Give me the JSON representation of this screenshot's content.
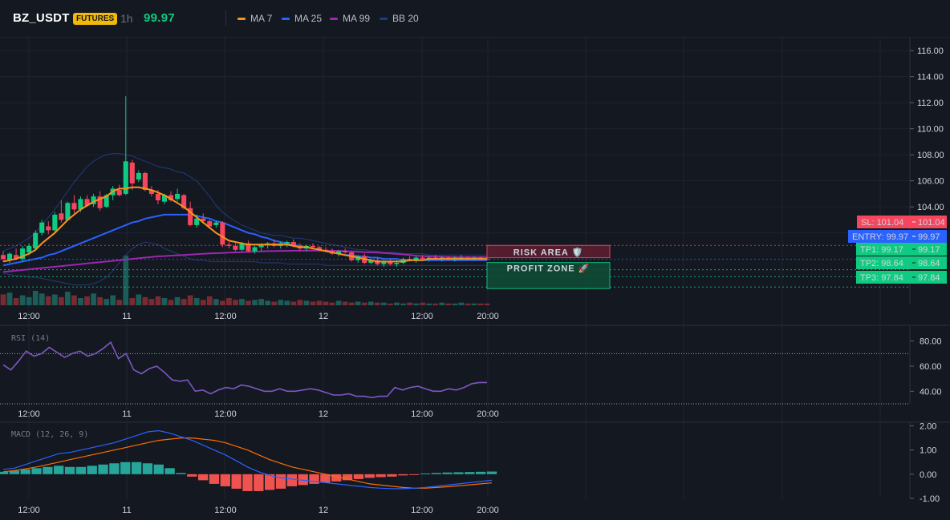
{
  "header": {
    "symbol": "BZ_USDT",
    "badge": "FUTURES",
    "timeframe": "1h",
    "price": "99.97",
    "legend": [
      {
        "label": "MA 7",
        "color": "#f7931a"
      },
      {
        "label": "MA 25",
        "color": "#2962ff"
      },
      {
        "label": "MA 99",
        "color": "#9c27b0"
      },
      {
        "label": "BB 20",
        "color": "#1e3a8a"
      }
    ]
  },
  "colors": {
    "up": "#26a69a",
    "down": "#ef5350",
    "candle_up": "#0ecb81",
    "candle_down": "#f6465d",
    "rsi": "#7e57c2",
    "macd": "#2962ff",
    "signal": "#ff6d00"
  },
  "x_ticks": [
    "12:00",
    "11",
    "12:00",
    "12",
    "12:00",
    "20:00"
  ],
  "chart_data": [
    {
      "type": "candlestick",
      "title": "",
      "ylim": [
        96.5,
        117
      ],
      "y_ticks": [
        "116.00",
        "114.00",
        "112.00",
        "110.00",
        "108.00",
        "106.00",
        "104.00",
        "102.00"
      ],
      "ohlc": [
        [
          100.3,
          100.6,
          99.8,
          100.0
        ],
        [
          99.9,
          100.5,
          99.7,
          100.4
        ],
        [
          100.3,
          100.8,
          99.9,
          100.0
        ],
        [
          100.0,
          101.0,
          99.8,
          100.8
        ],
        [
          100.5,
          101.2,
          100.3,
          101.0
        ],
        [
          100.8,
          102.2,
          100.6,
          102.0
        ],
        [
          102.0,
          103.0,
          101.8,
          102.8
        ],
        [
          102.5,
          102.9,
          101.9,
          102.2
        ],
        [
          102.2,
          103.6,
          102.0,
          103.4
        ],
        [
          103.5,
          104.5,
          102.8,
          103.0
        ],
        [
          103.0,
          104.4,
          102.9,
          104.3
        ],
        [
          104.3,
          104.9,
          103.5,
          103.8
        ],
        [
          103.8,
          104.8,
          103.6,
          104.6
        ],
        [
          104.6,
          104.9,
          104.0,
          104.1
        ],
        [
          104.2,
          105.0,
          104.0,
          104.8
        ],
        [
          104.8,
          105.2,
          103.7,
          103.9
        ],
        [
          104.0,
          105.0,
          103.9,
          104.9
        ],
        [
          104.9,
          105.6,
          104.5,
          105.4
        ],
        [
          105.3,
          105.7,
          104.8,
          104.9
        ],
        [
          105.0,
          112.5,
          104.9,
          107.5
        ],
        [
          107.4,
          107.6,
          105.3,
          105.8
        ],
        [
          106.1,
          106.8,
          105.9,
          106.6
        ],
        [
          106.6,
          106.7,
          105.2,
          105.3
        ],
        [
          105.3,
          105.6,
          104.8,
          105.0
        ],
        [
          105.0,
          105.3,
          104.2,
          104.5
        ],
        [
          104.4,
          105.0,
          104.2,
          104.9
        ],
        [
          104.9,
          105.2,
          104.4,
          104.5
        ],
        [
          104.6,
          105.4,
          104.4,
          105.0
        ],
        [
          104.9,
          105.0,
          103.8,
          103.9
        ],
        [
          103.9,
          104.4,
          102.5,
          102.6
        ],
        [
          102.6,
          103.4,
          102.4,
          103.1
        ],
        [
          103.1,
          103.5,
          102.7,
          102.9
        ],
        [
          102.9,
          103.0,
          102.3,
          102.5
        ],
        [
          102.6,
          102.9,
          102.4,
          102.8
        ],
        [
          102.8,
          102.9,
          100.9,
          101.1
        ],
        [
          101.1,
          101.3,
          100.8,
          101.0
        ],
        [
          101.0,
          101.2,
          100.6,
          100.7
        ],
        [
          100.7,
          101.3,
          100.6,
          101.2
        ],
        [
          101.2,
          101.4,
          100.5,
          100.6
        ],
        [
          100.6,
          101.0,
          100.4,
          100.9
        ],
        [
          100.9,
          101.2,
          100.6,
          101.1
        ],
        [
          101.1,
          101.3,
          100.8,
          101.2
        ],
        [
          101.2,
          101.5,
          100.9,
          101.0
        ],
        [
          101.0,
          101.3,
          100.8,
          101.2
        ],
        [
          101.2,
          101.4,
          100.9,
          101.3
        ],
        [
          101.3,
          101.5,
          100.9,
          101.0
        ],
        [
          101.0,
          101.2,
          100.6,
          100.8
        ],
        [
          100.8,
          101.1,
          100.6,
          101.0
        ],
        [
          101.0,
          101.2,
          100.8,
          100.9
        ],
        [
          100.9,
          101.0,
          100.6,
          100.7
        ],
        [
          100.7,
          100.9,
          100.5,
          100.6
        ],
        [
          100.6,
          100.8,
          100.3,
          100.4
        ],
        [
          100.4,
          100.7,
          100.2,
          100.6
        ],
        [
          100.6,
          100.8,
          100.4,
          100.5
        ],
        [
          100.5,
          100.6,
          99.8,
          99.9
        ],
        [
          99.9,
          100.3,
          99.7,
          100.2
        ],
        [
          100.2,
          100.4,
          99.6,
          99.7
        ],
        [
          99.7,
          100.0,
          99.6,
          99.9
        ],
        [
          99.9,
          100.1,
          99.5,
          99.6
        ],
        [
          99.6,
          99.9,
          99.4,
          99.8
        ],
        [
          99.8,
          100.0,
          99.5,
          99.6
        ],
        [
          99.6,
          99.9,
          99.4,
          99.7
        ],
        [
          99.7,
          100.1,
          99.6,
          100.0
        ],
        [
          100.0,
          100.2,
          99.8,
          99.9
        ],
        [
          99.9,
          100.2,
          99.7,
          100.1
        ],
        [
          100.1,
          100.3,
          99.9,
          100.0
        ],
        [
          100.0,
          100.2,
          99.8,
          100.1
        ],
        [
          100.1,
          100.3,
          99.9,
          100.0
        ],
        [
          100.0,
          100.2,
          99.8,
          100.1
        ],
        [
          100.1,
          100.2,
          99.9,
          100.0
        ],
        [
          100.0,
          100.2,
          99.8,
          100.1
        ],
        [
          100.1,
          100.3,
          99.9,
          100.1
        ],
        [
          100.1,
          100.2,
          99.9,
          100.0
        ],
        [
          100.0,
          100.2,
          99.9,
          100.1
        ],
        [
          100.1,
          100.2,
          99.9,
          100.0
        ],
        [
          100.0,
          100.2,
          99.9,
          99.97
        ]
      ],
      "ma7": [
        99.8,
        99.9,
        100.0,
        100.2,
        100.4,
        100.7,
        101.2,
        101.6,
        102.0,
        102.5,
        103.0,
        103.4,
        103.8,
        104.1,
        104.4,
        104.6,
        104.8,
        105.2,
        105.4,
        105.4,
        105.5,
        105.5,
        105.4,
        105.3,
        105.1,
        104.9,
        104.6,
        104.3,
        104.0,
        103.6,
        103.2,
        102.8,
        102.4,
        102.0,
        101.7,
        101.4,
        101.3,
        101.2,
        101.1,
        101.1,
        101.1,
        101.1,
        101.1,
        101.1,
        101.1,
        101.0,
        100.9,
        100.9,
        100.8,
        100.7,
        100.6,
        100.5,
        100.4,
        100.3,
        100.2,
        100.1,
        100.0,
        99.9,
        99.8,
        99.8,
        99.8,
        99.8,
        99.8,
        99.9,
        99.9,
        99.9,
        100.0,
        100.0,
        100.0,
        100.0,
        100.0,
        100.0,
        100.0,
        100.0,
        100.0,
        100.0
      ],
      "ma25": [
        99.5,
        99.6,
        99.7,
        99.8,
        99.9,
        100.0,
        100.1,
        100.3,
        100.4,
        100.6,
        100.8,
        101.0,
        101.2,
        101.4,
        101.6,
        101.8,
        102.0,
        102.2,
        102.4,
        102.6,
        102.8,
        102.9,
        103.1,
        103.2,
        103.3,
        103.4,
        103.4,
        103.4,
        103.4,
        103.4,
        103.3,
        103.2,
        103.1,
        102.9,
        102.8,
        102.6,
        102.4,
        102.2,
        102.0,
        101.9,
        101.7,
        101.6,
        101.4,
        101.3,
        101.2,
        101.1,
        101.0,
        100.9,
        100.8,
        100.7,
        100.6,
        100.5,
        100.4,
        100.3,
        100.3,
        100.2,
        100.2,
        100.1,
        100.1,
        100.0,
        100.0,
        100.0,
        99.9,
        99.9,
        99.9,
        99.9,
        99.9,
        99.9,
        99.9,
        99.9,
        99.9,
        99.9,
        99.9,
        99.9,
        99.9,
        99.9
      ],
      "ma99": [
        99.0,
        99.05,
        99.1,
        99.15,
        99.2,
        99.25,
        99.3,
        99.35,
        99.4,
        99.45,
        99.5,
        99.55,
        99.6,
        99.65,
        99.7,
        99.75,
        99.8,
        99.85,
        99.9,
        99.95,
        100.0,
        100.05,
        100.1,
        100.15,
        100.2,
        100.22,
        100.25,
        100.28,
        100.3,
        100.33,
        100.36,
        100.39,
        100.42,
        100.44,
        100.46,
        100.48,
        100.5,
        100.52,
        100.54,
        100.56,
        100.58,
        100.6,
        100.6,
        100.62,
        100.62,
        100.63,
        100.63,
        100.64,
        100.64,
        100.64,
        100.64,
        100.63,
        100.62,
        100.6,
        100.58,
        100.55,
        100.52,
        100.5,
        100.48,
        100.45,
        100.42,
        100.38,
        100.35,
        100.3,
        100.25,
        100.22,
        100.2,
        100.18,
        100.16,
        100.15,
        100.14,
        100.13,
        100.13,
        100.13,
        100.13,
        100.13
      ],
      "bb_upper": [
        100.6,
        100.8,
        101.0,
        101.3,
        101.6,
        102.0,
        102.6,
        103.2,
        103.8,
        104.5,
        105.2,
        105.9,
        106.5,
        107.1,
        107.5,
        107.8,
        108.0,
        108.1,
        108.1,
        108.0,
        107.9,
        107.7,
        107.5,
        107.3,
        107.1,
        107.0,
        106.9,
        106.7,
        106.6,
        106.3,
        106.0,
        105.4,
        104.8,
        104.1,
        103.6,
        103.2,
        102.9,
        102.6,
        102.4,
        102.2,
        102.0,
        101.9,
        101.8,
        101.8,
        101.7,
        101.6,
        101.6,
        101.5,
        101.4,
        101.3,
        101.2,
        101.1,
        101.0,
        100.9,
        100.8,
        100.7,
        100.7,
        100.6,
        100.6,
        100.5,
        100.5,
        100.5,
        100.4,
        100.4,
        100.4,
        100.4,
        100.3,
        100.3,
        100.3,
        100.3,
        100.3,
        100.3,
        100.3,
        100.3,
        100.3,
        100.3
      ],
      "bb_lower": [
        98.9,
        98.8,
        98.7,
        98.7,
        98.6,
        98.6,
        98.5,
        98.4,
        98.3,
        98.2,
        98.1,
        98.0,
        98.0,
        98.0,
        98.1,
        98.3,
        98.6,
        99.1,
        99.7,
        100.3,
        100.8,
        101.1,
        101.3,
        101.2,
        101.1,
        100.8,
        100.6,
        100.4,
        100.2,
        100.0,
        99.9,
        99.9,
        99.8,
        99.8,
        99.8,
        99.8,
        99.8,
        99.8,
        99.8,
        99.8,
        99.7,
        99.7,
        99.7,
        99.7,
        99.6,
        99.6,
        99.6,
        99.6,
        99.6,
        99.6,
        99.5,
        99.5,
        99.5,
        99.5,
        99.5,
        99.5,
        99.5,
        99.5,
        99.5,
        99.5,
        99.5,
        99.5,
        99.5,
        99.5,
        99.5,
        99.5,
        99.5,
        99.5,
        99.5,
        99.5,
        99.5,
        99.5,
        99.5,
        99.5,
        99.5,
        99.5
      ],
      "volume": [
        12,
        14,
        8,
        11,
        9,
        16,
        13,
        10,
        12,
        9,
        15,
        11,
        8,
        10,
        13,
        9,
        7,
        11,
        6,
        55,
        8,
        12,
        9,
        7,
        10,
        8,
        6,
        9,
        7,
        11,
        8,
        6,
        10,
        7,
        5,
        8,
        6,
        7,
        5,
        6,
        7,
        5,
        4,
        6,
        5,
        4,
        6,
        5,
        4,
        5,
        4,
        3,
        5,
        4,
        3,
        4,
        3,
        4,
        3,
        3,
        2,
        3,
        2,
        3,
        2,
        3,
        2,
        2,
        3,
        2,
        2,
        3,
        2,
        2,
        2,
        2
      ],
      "levels": [
        {
          "label": "SL: 101.04",
          "value": "101.04",
          "price": 101.04,
          "color": "#f6465d"
        },
        {
          "label": "ENTRY: 99.97",
          "value": "99.97",
          "price": 99.97,
          "color": "#2962ff"
        },
        {
          "label": "TP1: 99.17",
          "value": "99.17",
          "price": 99.17,
          "color": "#0ecb81"
        },
        {
          "label": "TP2: 98.64",
          "value": "98.64",
          "price": 98.64,
          "color": "#0ecb81"
        },
        {
          "label": "TP3: 97.84",
          "value": "97.84",
          "price": 97.84,
          "color": "#0ecb81"
        }
      ],
      "zones": {
        "risk": "RISK AREA 🛡️",
        "profit": "PROFIT ZONE 🚀"
      }
    },
    {
      "type": "line",
      "title": "RSI (14)",
      "ylim": [
        30,
        90
      ],
      "y_ticks": [
        "80.00",
        "60.00",
        "40.00"
      ],
      "levels": [
        70,
        30
      ],
      "values": [
        61,
        57,
        64,
        72,
        68,
        70,
        75,
        71,
        67,
        70,
        72,
        68,
        70,
        74,
        79,
        66,
        70,
        57,
        54,
        58,
        60,
        55,
        49,
        48,
        49,
        40,
        41,
        38,
        41,
        43,
        42,
        45,
        44,
        42,
        40,
        40,
        42,
        40,
        40,
        41,
        42,
        41,
        39,
        37,
        37,
        38,
        36,
        36,
        35,
        36,
        36,
        43,
        41,
        43,
        44,
        42,
        40,
        40,
        42,
        41,
        43,
        46,
        47,
        47
      ]
    },
    {
      "type": "line",
      "title": "MACD (12, 26, 9)",
      "ylim": [
        -1.0,
        2.05
      ],
      "y_ticks": [
        "2.00",
        "1.00",
        "0.00",
        "-1.00"
      ],
      "macd": [
        0.2,
        0.25,
        0.4,
        0.55,
        0.7,
        0.85,
        0.9,
        1.0,
        1.1,
        1.2,
        1.3,
        1.45,
        1.6,
        1.75,
        1.8,
        1.7,
        1.55,
        1.4,
        1.2,
        1.0,
        0.8,
        0.55,
        0.3,
        0.1,
        -0.05,
        -0.15,
        -0.2,
        -0.25,
        -0.3,
        -0.35,
        -0.4,
        -0.45,
        -0.5,
        -0.55,
        -0.58,
        -0.6,
        -0.6,
        -0.58,
        -0.55,
        -0.5,
        -0.45,
        -0.4,
        -0.35,
        -0.3,
        -0.25
      ],
      "signal": [
        0.1,
        0.15,
        0.22,
        0.3,
        0.4,
        0.5,
        0.6,
        0.7,
        0.8,
        0.9,
        1.0,
        1.1,
        1.2,
        1.3,
        1.4,
        1.45,
        1.5,
        1.5,
        1.45,
        1.4,
        1.3,
        1.15,
        1.0,
        0.8,
        0.6,
        0.45,
        0.3,
        0.2,
        0.1,
        0.0,
        -0.1,
        -0.2,
        -0.3,
        -0.4,
        -0.45,
        -0.5,
        -0.55,
        -0.58,
        -0.58,
        -0.55,
        -0.52,
        -0.48,
        -0.44,
        -0.4,
        -0.36
      ],
      "histogram": [
        0.1,
        0.15,
        0.2,
        0.25,
        0.3,
        0.35,
        0.3,
        0.3,
        0.35,
        0.4,
        0.45,
        0.5,
        0.5,
        0.45,
        0.4,
        0.25,
        0.05,
        -0.1,
        -0.25,
        -0.4,
        -0.5,
        -0.6,
        -0.7,
        -0.7,
        -0.65,
        -0.6,
        -0.5,
        -0.45,
        -0.4,
        -0.35,
        -0.3,
        -0.25,
        -0.2,
        -0.15,
        -0.12,
        -0.1,
        -0.05,
        -0.02,
        0.03,
        0.05,
        0.07,
        0.08,
        0.09,
        0.1,
        0.11
      ]
    }
  ]
}
